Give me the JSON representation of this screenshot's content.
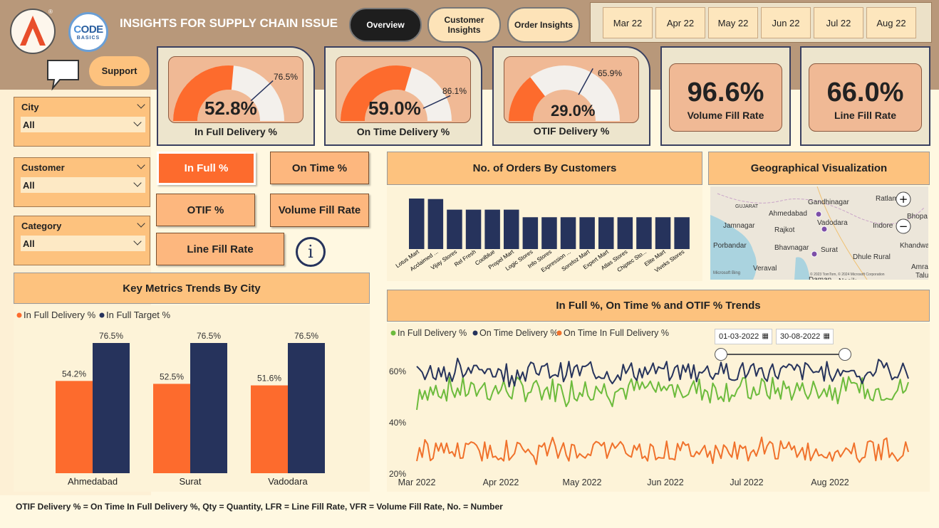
{
  "header": {
    "title": "INSIGHTS FOR SUPPLY CHAIN ISSUE",
    "logo2_text": "ODE",
    "logo2_sub": "BASICS",
    "trademark": "®",
    "nav": [
      "Overview",
      "Customer Insights",
      "Order Insights"
    ],
    "months": [
      "Mar 22",
      "Apr 22",
      "May 22",
      "Jun 22",
      "Jul 22",
      "Aug 22"
    ],
    "support_label": "Support"
  },
  "filters": [
    {
      "label": "City",
      "value": "All"
    },
    {
      "label": "Customer",
      "value": "All"
    },
    {
      "label": "Category",
      "value": "All"
    }
  ],
  "kpis": [
    {
      "label": "In Full Delivery %",
      "value": "52.8%",
      "target": "76.5%",
      "fraction": 0.528,
      "target_fraction": 0.765
    },
    {
      "label": "On Time Delivery %",
      "value": "59.0%",
      "target": "86.1%",
      "fraction": 0.59,
      "target_fraction": 0.861
    },
    {
      "label": "OTIF Delivery %",
      "value": "29.0%",
      "target": "65.9%",
      "fraction": 0.29,
      "target_fraction": 0.659
    }
  ],
  "big_kpis": [
    {
      "label": "Volume Fill Rate",
      "value": "96.6%"
    },
    {
      "label": "Line Fill Rate",
      "value": "66.0%"
    }
  ],
  "metric_buttons": [
    "In Full %",
    "On Time %",
    "OTIF %",
    "Volume Fill Rate",
    "Line Fill Rate"
  ],
  "info_glyph": "i",
  "orders_chart": {
    "title": "No. of Orders By Customers",
    "chart_data": {
      "type": "bar",
      "categories": [
        "Lotus Mart",
        "Acclaimed ...",
        "Vijay Stores",
        "Rel Fresh",
        "Coolblue",
        "Propel Mart",
        "Logic Stores",
        "Info Stores",
        "Expression ...",
        "Sorefoz Mart",
        "Expert Mart",
        "Atlas Stores",
        "Chiptec Sto...",
        "Elite Mart",
        "Viveks Stores"
      ],
      "values": [
        100,
        99,
        78,
        78,
        78,
        78,
        63,
        63,
        63,
        63,
        63,
        63,
        63,
        63,
        63
      ],
      "color": "#26335c"
    }
  },
  "geo": {
    "title": "Geographical Visualization",
    "places": [
      "Gandhinagar",
      "Ratlam",
      "Ahmedabad",
      "Bhopa",
      "GUJARAT",
      "Jamnagar",
      "Rajkot",
      "Vadodara",
      "Indore",
      "Porbandar",
      "Bhavnagar",
      "Surat",
      "Dhule Rural",
      "Khandwa",
      "Veraval",
      "Amra",
      "Talu",
      "Daman",
      "Nasik"
    ],
    "copyright": "© 2023 TomTom, © 2024 Microsoft Corporation",
    "bing": "Microsoft Bing",
    "zoom_in": "+",
    "zoom_out": "−"
  },
  "city_chart": {
    "title": "Key Metrics Trends By City",
    "chart_data": {
      "type": "bar",
      "categories": [
        "Ahmedabad",
        "Surat",
        "Vadodara"
      ],
      "series": [
        {
          "name": "In Full Delivery %",
          "values": [
            54.2,
            52.5,
            51.6
          ],
          "labels": [
            "54.2%",
            "52.5%",
            "51.6%"
          ],
          "color": "#fd6b2d"
        },
        {
          "name": "In Full Target %",
          "values": [
            76.5,
            76.5,
            76.5
          ],
          "labels": [
            "76.5%",
            "76.5%",
            "76.5%"
          ],
          "color": "#26335c"
        }
      ],
      "ylim": [
        0,
        100
      ]
    }
  },
  "trend_chart": {
    "title": "In Full %, On Time % and OTIF % Trends",
    "date_from": "01-03-2022",
    "date_to": "30-08-2022",
    "chart_data": {
      "type": "line",
      "x_ticks": [
        "Mar 2022",
        "Apr 2022",
        "May 2022",
        "Jun 2022",
        "Jul 2022",
        "Aug 2022"
      ],
      "y_ticks": [
        "60%",
        "40%",
        "20%"
      ],
      "y_tick_values": [
        60,
        40,
        20
      ],
      "ylim": [
        20,
        66
      ],
      "series": [
        {
          "name": "In Full Delivery %",
          "color": "#6cbb3c",
          "mean": 53,
          "amp": 5,
          "start": 45
        },
        {
          "name": "On Time Delivery %",
          "color": "#26335c",
          "mean": 60,
          "amp": 4,
          "start": 62
        },
        {
          "name": "On Time In Full Delivery %",
          "color": "#f0712b",
          "mean": 29,
          "amp": 4,
          "start": 25
        }
      ]
    }
  },
  "footer": "OTIF Delivery % = On Time In Full Delivery %, Qty = Quantity, LFR = Line Fill Rate, VFR = Volume Fill Rate, No. = Number"
}
